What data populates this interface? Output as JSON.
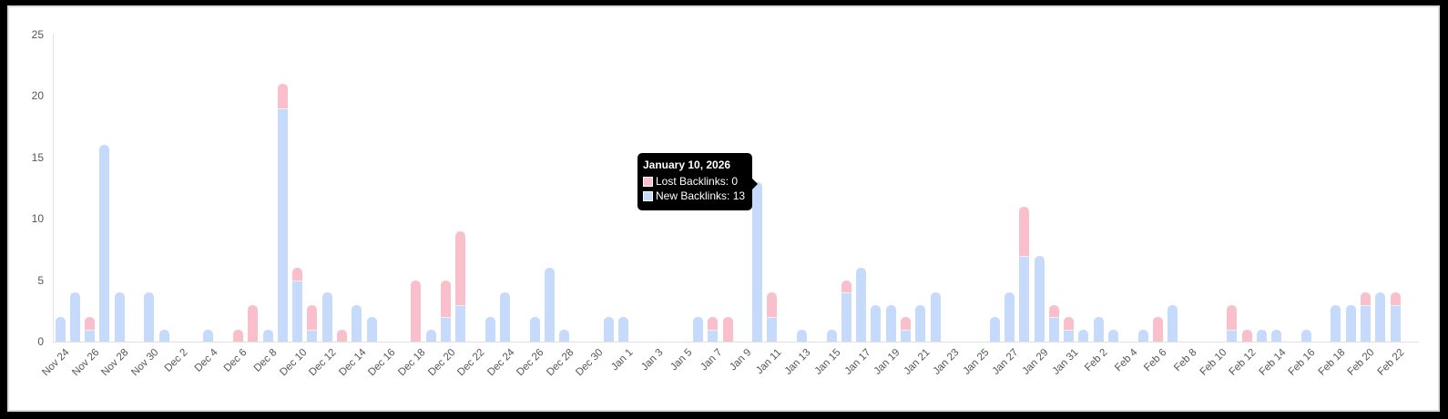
{
  "chart_data": {
    "type": "bar",
    "stacked": true,
    "title": "",
    "xlabel": "",
    "ylabel": "",
    "ylim": [
      0,
      25
    ],
    "yticks": [
      0,
      5,
      10,
      15,
      20,
      25
    ],
    "grid": false,
    "legend_position": "none",
    "categories": [
      "Nov 24",
      "Nov 25",
      "Nov 26",
      "Nov 27",
      "Nov 28",
      "Nov 29",
      "Nov 30",
      "Dec 1",
      "Dec 2",
      "Dec 3",
      "Dec 4",
      "Dec 5",
      "Dec 6",
      "Dec 7",
      "Dec 8",
      "Dec 9",
      "Dec 10",
      "Dec 11",
      "Dec 12",
      "Dec 13",
      "Dec 14",
      "Dec 15",
      "Dec 16",
      "Dec 17",
      "Dec 18",
      "Dec 19",
      "Dec 20",
      "Dec 21",
      "Dec 22",
      "Dec 23",
      "Dec 24",
      "Dec 25",
      "Dec 26",
      "Dec 27",
      "Dec 28",
      "Dec 29",
      "Dec 30",
      "Dec 31",
      "Jan 1",
      "Jan 2",
      "Jan 3",
      "Jan 4",
      "Jan 5",
      "Jan 6",
      "Jan 7",
      "Jan 8",
      "Jan 9",
      "Jan 10",
      "Jan 11",
      "Jan 12",
      "Jan 13",
      "Jan 14",
      "Jan 15",
      "Jan 16",
      "Jan 17",
      "Jan 18",
      "Jan 19",
      "Jan 20",
      "Jan 21",
      "Jan 22",
      "Jan 23",
      "Jan 24",
      "Jan 25",
      "Jan 26",
      "Jan 27",
      "Jan 28",
      "Jan 29",
      "Jan 30",
      "Jan 31",
      "Feb 1",
      "Feb 2",
      "Feb 3",
      "Feb 4",
      "Feb 5",
      "Feb 6",
      "Feb 7",
      "Feb 8",
      "Feb 9",
      "Feb 10",
      "Feb 11",
      "Feb 12",
      "Feb 13",
      "Feb 14",
      "Feb 15",
      "Feb 16",
      "Feb 17",
      "Feb 18",
      "Feb 19",
      "Feb 20",
      "Feb 21",
      "Feb 22"
    ],
    "series": [
      {
        "name": "New Backlinks",
        "color": "#c6dafc",
        "values": [
          2,
          4,
          1,
          16,
          4,
          0,
          4,
          1,
          0,
          0,
          1,
          0,
          0,
          0,
          1,
          19,
          5,
          1,
          4,
          0,
          3,
          2,
          0,
          0,
          0,
          1,
          2,
          3,
          0,
          2,
          4,
          0,
          2,
          6,
          1,
          0,
          0,
          2,
          2,
          0,
          0,
          0,
          0,
          2,
          1,
          0,
          0,
          13,
          2,
          0,
          1,
          0,
          1,
          4,
          6,
          3,
          3,
          1,
          3,
          4,
          0,
          0,
          0,
          2,
          4,
          7,
          7,
          2,
          1,
          1,
          2,
          1,
          0,
          1,
          0,
          3,
          0,
          0,
          0,
          1,
          0,
          1,
          1,
          0,
          1,
          0,
          3,
          3,
          3,
          4,
          3
        ]
      },
      {
        "name": "Lost Backlinks",
        "color": "#f9c0cb",
        "values": [
          0,
          0,
          1,
          0,
          0,
          0,
          0,
          0,
          0,
          0,
          0,
          0,
          1,
          3,
          0,
          2,
          1,
          2,
          0,
          1,
          0,
          0,
          0,
          0,
          5,
          0,
          3,
          6,
          0,
          0,
          0,
          0,
          0,
          0,
          0,
          0,
          0,
          0,
          0,
          0,
          0,
          0,
          0,
          0,
          1,
          2,
          0,
          0,
          2,
          0,
          0,
          0,
          0,
          1,
          0,
          0,
          0,
          1,
          0,
          0,
          0,
          0,
          0,
          0,
          0,
          4,
          0,
          1,
          1,
          0,
          0,
          0,
          0,
          0,
          2,
          0,
          0,
          0,
          0,
          2,
          1,
          0,
          0,
          0,
          0,
          0,
          0,
          0,
          1,
          0,
          1
        ]
      }
    ],
    "x_tick_labels": [
      "Nov 24",
      "Nov 26",
      "Nov 28",
      "Nov 30",
      "Dec 2",
      "Dec 4",
      "Dec 6",
      "Dec 8",
      "Dec 10",
      "Dec 12",
      "Dec 14",
      "Dec 16",
      "Dec 18",
      "Dec 20",
      "Dec 22",
      "Dec 24",
      "Dec 26",
      "Dec 28",
      "Dec 30",
      "Jan 1",
      "Jan 3",
      "Jan 5",
      "Jan 7",
      "Jan 9",
      "Jan 11",
      "Jan 13",
      "Jan 15",
      "Jan 17",
      "Jan 19",
      "Jan 21",
      "Jan 23",
      "Jan 25",
      "Jan 27",
      "Jan 29",
      "Jan 31",
      "Feb 2",
      "Feb 4",
      "Feb 6",
      "Feb 8",
      "Feb 10",
      "Feb 12",
      "Feb 14",
      "Feb 16",
      "Feb 18",
      "Feb 20",
      "Feb 22"
    ]
  },
  "tooltip": {
    "title": "January 10, 2026",
    "rows": [
      {
        "label": "Lost Backlinks: 0",
        "color": "#f9c0cb"
      },
      {
        "label": "New Backlinks: 13",
        "color": "#c6dafc"
      }
    ]
  }
}
